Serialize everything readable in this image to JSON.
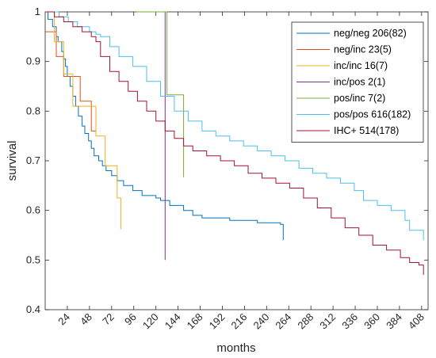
{
  "chart_data": {
    "type": "line",
    "step": true,
    "xlabel": "months",
    "ylabel": "survival",
    "xlim": [
      0,
      415
    ],
    "ylim": [
      0.4,
      1.0
    ],
    "xticks": [
      24,
      48,
      72,
      96,
      120,
      144,
      168,
      192,
      216,
      240,
      264,
      288,
      312,
      336,
      360,
      384,
      408
    ],
    "yticks": [
      0.4,
      0.5,
      0.6,
      0.7,
      0.8,
      0.9,
      1.0
    ],
    "ytick_labels": [
      "0.4",
      "0.5",
      "0.6",
      "0.7",
      "0.8",
      "0.9",
      "1"
    ],
    "grid": false,
    "legend_position": "top-right",
    "series": [
      {
        "name": "neg/neg 206(82)",
        "color": "#0072BD",
        "x": [
          0,
          3,
          8,
          12,
          14,
          18,
          20,
          22,
          24,
          27,
          30,
          33,
          36,
          40,
          43,
          47,
          50,
          53,
          58,
          62,
          66,
          72,
          78,
          85,
          95,
          105,
          120,
          125,
          135,
          150,
          160,
          170,
          200,
          230,
          255,
          258
        ],
        "y": [
          1.0,
          0.985,
          0.97,
          0.95,
          0.94,
          0.92,
          0.905,
          0.89,
          0.87,
          0.85,
          0.83,
          0.81,
          0.79,
          0.77,
          0.755,
          0.74,
          0.725,
          0.71,
          0.7,
          0.69,
          0.68,
          0.67,
          0.66,
          0.65,
          0.64,
          0.63,
          0.625,
          0.62,
          0.61,
          0.6,
          0.59,
          0.585,
          0.58,
          0.575,
          0.572,
          0.54
        ]
      },
      {
        "name": "neg/inc 23(5)",
        "color": "#D95319",
        "x": [
          0,
          5,
          12,
          20,
          25,
          38,
          40,
          50,
          55
        ],
        "y": [
          0.96,
          0.96,
          0.91,
          0.87,
          0.87,
          0.82,
          0.82,
          0.76,
          0.76
        ]
      },
      {
        "name": "inc/inc 16(7)",
        "color": "#EDB120",
        "x": [
          0,
          10,
          15,
          20,
          24,
          30,
          40,
          48,
          55,
          60,
          65,
          70,
          78,
          82
        ],
        "y": [
          1.0,
          0.94,
          0.94,
          0.875,
          0.875,
          0.81,
          0.81,
          0.81,
          0.75,
          0.75,
          0.69,
          0.69,
          0.625,
          0.562
        ]
      },
      {
        "name": "inc/pos 2(1)",
        "color": "#7E2F8E",
        "x": [
          99,
          130,
          130
        ],
        "y": [
          1.0,
          1.0,
          0.5
        ]
      },
      {
        "name": "pos/inc 7(2)",
        "color": "#77AC30",
        "x": [
          99,
          132,
          132,
          150,
          150
        ],
        "y": [
          1.0,
          1.0,
          0.833,
          0.833,
          0.667
        ]
      },
      {
        "name": "pos/pos 616(182)",
        "color": "#4DBEEE",
        "x": [
          0,
          15,
          25,
          35,
          48,
          55,
          60,
          70,
          80,
          95,
          110,
          125,
          140,
          155,
          170,
          185,
          200,
          215,
          230,
          245,
          260,
          275,
          290,
          305,
          320,
          335,
          345,
          360,
          375,
          390,
          395,
          410
        ],
        "y": [
          1.0,
          0.99,
          0.98,
          0.97,
          0.96,
          0.955,
          0.95,
          0.93,
          0.91,
          0.89,
          0.86,
          0.83,
          0.8,
          0.78,
          0.76,
          0.75,
          0.74,
          0.73,
          0.72,
          0.71,
          0.7,
          0.685,
          0.675,
          0.665,
          0.655,
          0.64,
          0.62,
          0.61,
          0.6,
          0.58,
          0.56,
          0.54
        ]
      },
      {
        "name": "IHC+ 514(178)",
        "color": "#A2142F",
        "x": [
          0,
          10,
          20,
          30,
          40,
          50,
          55,
          60,
          70,
          80,
          90,
          100,
          110,
          120,
          130,
          140,
          150,
          160,
          175,
          190,
          205,
          220,
          235,
          250,
          265,
          280,
          295,
          310,
          325,
          340,
          355,
          370,
          385,
          395,
          405,
          410
        ],
        "y": [
          1.0,
          0.99,
          0.98,
          0.97,
          0.96,
          0.95,
          0.94,
          0.91,
          0.88,
          0.86,
          0.84,
          0.82,
          0.8,
          0.78,
          0.76,
          0.745,
          0.73,
          0.72,
          0.71,
          0.7,
          0.69,
          0.675,
          0.665,
          0.655,
          0.645,
          0.625,
          0.605,
          0.585,
          0.565,
          0.55,
          0.53,
          0.52,
          0.505,
          0.495,
          0.49,
          0.47
        ]
      }
    ]
  }
}
